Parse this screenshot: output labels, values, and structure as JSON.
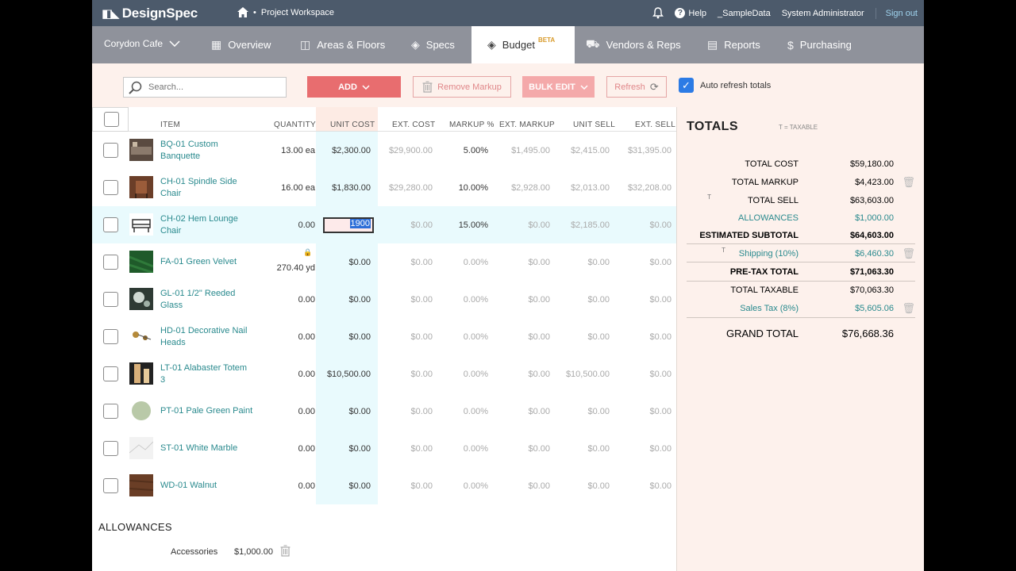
{
  "topbar": {
    "logo_text": "DesignSpec",
    "workspace": "Project Workspace",
    "help": "Help",
    "sample_data": "_SampleData",
    "user": "System Administrator",
    "signout": "Sign out"
  },
  "nav": {
    "project": "Corydon Cafe",
    "tabs": [
      {
        "label": "Overview",
        "icon": "grid-icon"
      },
      {
        "label": "Areas & Floors",
        "icon": "floorplan-icon"
      },
      {
        "label": "Specs",
        "icon": "layers-icon"
      },
      {
        "label": "Budget",
        "icon": "stack-icon",
        "badge": "BETA"
      },
      {
        "label": "Vendors & Reps",
        "icon": "truck-icon"
      },
      {
        "label": "Reports",
        "icon": "report-icon"
      },
      {
        "label": "Purchasing",
        "icon": "dollar-icon"
      }
    ]
  },
  "toolbar": {
    "search_placeholder": "Search...",
    "add": "ADD",
    "remove_markup": "Remove Markup",
    "bulk_edit": "BULK EDIT",
    "refresh": "Refresh",
    "auto_refresh": "Auto refresh totals"
  },
  "columns": [
    "ITEM",
    "QUANTITY",
    "UNIT COST",
    "EXT. COST",
    "MARKUP %",
    "EXT. MARKUP",
    "UNIT SELL",
    "EXT. SELL"
  ],
  "rows": [
    {
      "item": "BQ-01 Custom Banquette",
      "qty": "13.00 ea",
      "unit_cost": "$2,300.00",
      "ext_cost": "$29,900.00",
      "markup": "5.00%",
      "ext_markup": "$1,495.00",
      "unit_sell": "$2,415.00",
      "ext_sell": "$31,395.00"
    },
    {
      "item": "CH-01 Spindle Side Chair",
      "qty": "16.00 ea",
      "unit_cost": "$1,830.00",
      "ext_cost": "$29,280.00",
      "markup": "10.00%",
      "ext_markup": "$2,928.00",
      "unit_sell": "$2,013.00",
      "ext_sell": "$32,208.00"
    },
    {
      "item": "CH-02 Hem Lounge Chair",
      "qty": "0.00",
      "unit_cost": "1900",
      "ext_cost": "$0.00",
      "markup": "15.00%",
      "ext_markup": "$0.00",
      "unit_sell": "$2,185.00",
      "ext_sell": "$0.00"
    },
    {
      "item": "FA-01 Green Velvet",
      "qty": "270.40 yd",
      "unit_cost": "$0.00",
      "ext_cost": "$0.00",
      "markup": "0.00%",
      "ext_markup": "$0.00",
      "unit_sell": "$0.00",
      "ext_sell": "$0.00"
    },
    {
      "item": "GL-01 1/2\" Reeded Glass",
      "qty": "0.00",
      "unit_cost": "$0.00",
      "ext_cost": "$0.00",
      "markup": "0.00%",
      "ext_markup": "$0.00",
      "unit_sell": "$0.00",
      "ext_sell": "$0.00"
    },
    {
      "item": "HD-01 Decorative Nail Heads",
      "qty": "0.00",
      "unit_cost": "$0.00",
      "ext_cost": "$0.00",
      "markup": "0.00%",
      "ext_markup": "$0.00",
      "unit_sell": "$0.00",
      "ext_sell": "$0.00"
    },
    {
      "item": "LT-01 Alabaster Totem 3",
      "qty": "0.00",
      "unit_cost": "$10,500.00",
      "ext_cost": "$0.00",
      "markup": "0.00%",
      "ext_markup": "$0.00",
      "unit_sell": "$10,500.00",
      "ext_sell": "$0.00"
    },
    {
      "item": "PT-01 Pale Green Paint",
      "qty": "0.00",
      "unit_cost": "$0.00",
      "ext_cost": "$0.00",
      "markup": "0.00%",
      "ext_markup": "$0.00",
      "unit_sell": "$0.00",
      "ext_sell": "$0.00"
    },
    {
      "item": "ST-01 White Marble",
      "qty": "0.00",
      "unit_cost": "$0.00",
      "ext_cost": "$0.00",
      "markup": "0.00%",
      "ext_markup": "$0.00",
      "unit_sell": "$0.00",
      "ext_sell": "$0.00"
    },
    {
      "item": "WD-01 Walnut",
      "qty": "0.00",
      "unit_cost": "$0.00",
      "ext_cost": "$0.00",
      "markup": "0.00%",
      "ext_markup": "$0.00",
      "unit_sell": "$0.00",
      "ext_sell": "$0.00"
    }
  ],
  "allowances": {
    "title": "ALLOWANCES",
    "items": [
      {
        "label": "Accessories",
        "value": "$1,000.00"
      }
    ]
  },
  "totals": {
    "title": "TOTALS",
    "taxable_note": "T = TAXABLE",
    "total_cost": {
      "label": "TOTAL COST",
      "value": "$59,180.00"
    },
    "total_markup": {
      "label": "TOTAL MARKUP",
      "value": "$4,423.00"
    },
    "total_sell": {
      "label": "TOTAL SELL",
      "value": "$63,603.00"
    },
    "allowances": {
      "label": "ALLOWANCES",
      "value": "$1,000.00"
    },
    "estimated_subtotal": {
      "label": "ESTIMATED SUBTOTAL",
      "value": "$64,603.00"
    },
    "shipping": {
      "label": "Shipping (10%)",
      "value": "$6,460.30"
    },
    "pretax_total": {
      "label": "PRE-TAX TOTAL",
      "value": "$71,063.30"
    },
    "total_taxable": {
      "label": "TOTAL TAXABLE",
      "value": "$70,063.30"
    },
    "sales_tax": {
      "label": "Sales Tax (8%)",
      "value": "$5,605.06"
    },
    "grand_total": {
      "label": "GRAND TOTAL",
      "value": "$76,668.36"
    },
    "t_mark": "T"
  },
  "colors": {
    "accent_red": "#e86d6f",
    "teal_link": "#2a8a8e",
    "topbar": "#4c5a6b",
    "nav": "#8f929b"
  }
}
